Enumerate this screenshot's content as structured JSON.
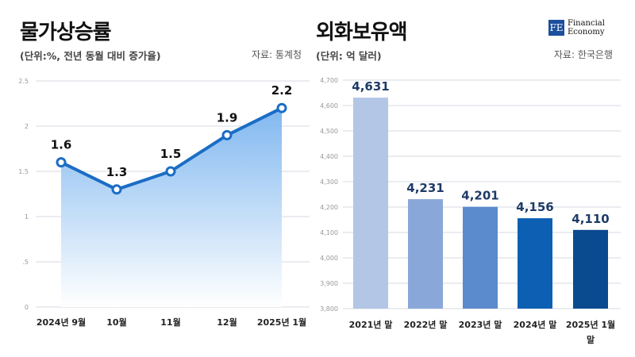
{
  "left": {
    "title": "물가상승률",
    "subtitle": "(단위:%, 전년 동월 대비 증가율)",
    "source": "자료: 통계청"
  },
  "right": {
    "title": "외화보유액",
    "subtitle": "(단위: 억 달러)",
    "source": "자료: 한국은행"
  },
  "logo": {
    "mark": "FE",
    "line1": "Financial",
    "line2": "Economy"
  },
  "colors": {
    "line": "#1b6dc5",
    "area_top": "#7ab4ef",
    "bars": [
      "#b3c6e6",
      "#8aa7d9",
      "#5b8acd",
      "#0c5fb2",
      "#0a4a8f"
    ],
    "bar_labels": [
      "#1f3b66",
      "#1f3b66",
      "#1f3b66",
      "#1f3b66",
      "#1f3b66"
    ]
  },
  "chart_data": [
    {
      "type": "area",
      "categories": [
        "2024년 9월",
        "10월",
        "11월",
        "12월",
        "2025년 1월"
      ],
      "values": [
        1.6,
        1.3,
        1.5,
        1.9,
        2.2
      ],
      "value_labels": [
        "1.6",
        "1.3",
        "1.5",
        "1.9",
        "2.2"
      ],
      "ylim": [
        0,
        2.5
      ],
      "yticks": [
        0,
        0.5,
        1,
        1.5,
        2,
        2.5
      ],
      "ytick_labels": [
        "0",
        ".5",
        "1",
        "1.5",
        "2",
        "2.5"
      ],
      "grid": true
    },
    {
      "type": "bar",
      "categories": [
        "2021년 말",
        "2022년 말",
        "2023년 말",
        "2024년 말",
        "2025년 1월 말"
      ],
      "category_lines": [
        [
          "2021년 말"
        ],
        [
          "2022년 말"
        ],
        [
          "2023년 말"
        ],
        [
          "2024년 말"
        ],
        [
          "2025년 1월",
          "말"
        ]
      ],
      "values": [
        4631,
        4231,
        4201,
        4156,
        4110
      ],
      "value_labels": [
        "4,631",
        "4,231",
        "4,201",
        "4,156",
        "4,110"
      ],
      "ylim": [
        3800,
        4700
      ],
      "yticks": [
        3800,
        3900,
        4000,
        4100,
        4200,
        4300,
        4400,
        4500,
        4600,
        4700
      ],
      "ytick_labels": [
        "3,800",
        "3,900",
        "4,000",
        "4,100",
        "4,200",
        "4,300",
        "4,400",
        "4,500",
        "4,600",
        "4,700"
      ],
      "grid": true
    }
  ]
}
